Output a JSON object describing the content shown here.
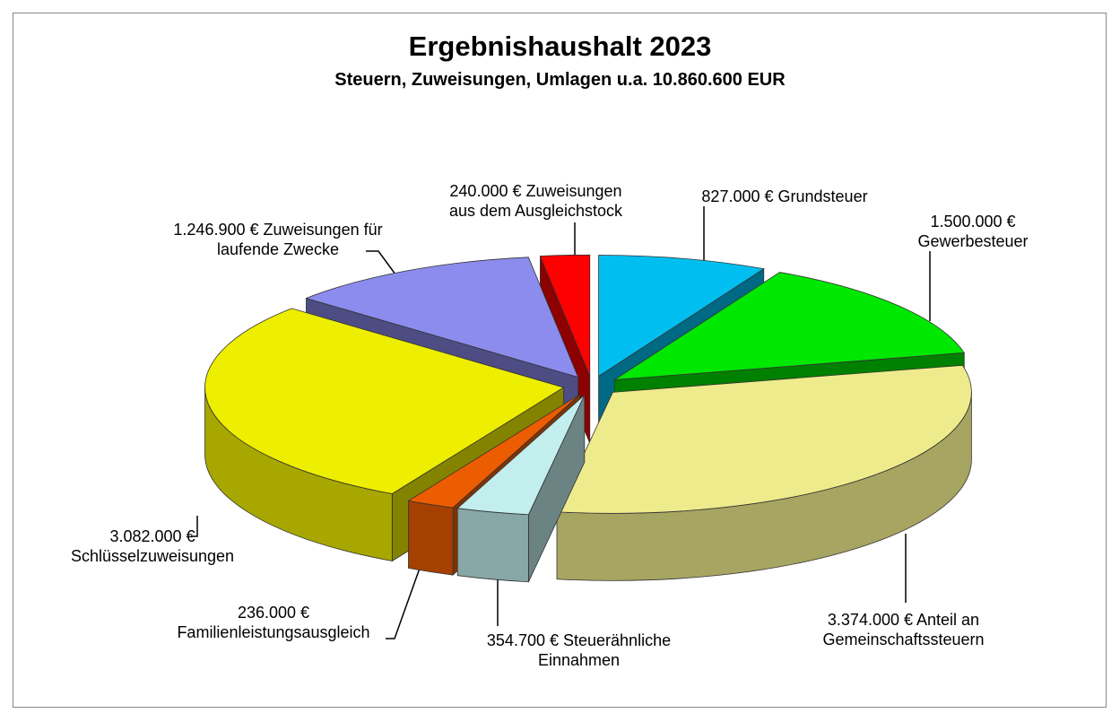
{
  "chart_data": {
    "type": "pie3d",
    "title": "Ergebnishaushalt 2023",
    "subtitle": "Steuern, Zuweisungen, Umlagen u.a. 10.860.600 EUR",
    "categories": [
      "Grundsteuer",
      "Gewerbesteuer",
      "Anteil an Gemeinschaftssteuern",
      "Steuerähnliche Einnahmen",
      "Familienleistungsausgleich",
      "Schlüsselzuweisungen",
      "Zuweisungen für laufende Zwecke",
      "Zuweisungen aus dem Ausgleichstock"
    ],
    "values": [
      827000,
      1500000,
      3374000,
      354700,
      236000,
      3082000,
      1246900,
      240000
    ],
    "value_labels": [
      "827.000 €",
      "1.500.000 €",
      "3.374.000 €",
      "354.700 €",
      "236.000 €",
      "3.082.000 €",
      "1.246.900 €",
      "240.000 €"
    ],
    "colors": [
      "#00bff0",
      "#00e800",
      "#eeeb8c",
      "#c2eeee",
      "#ec5c00",
      "#eeee00",
      "#8c8cee",
      "#ff0000"
    ]
  }
}
